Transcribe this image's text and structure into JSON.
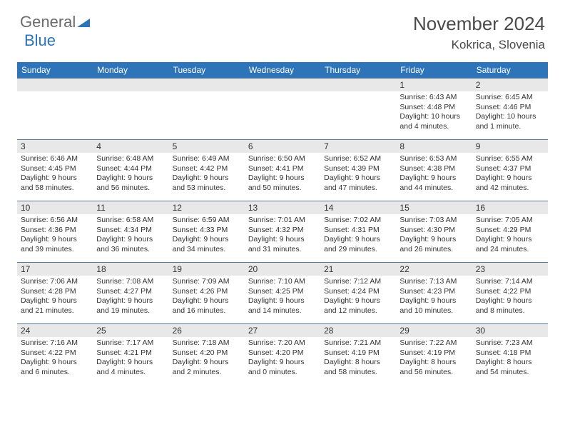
{
  "brand": {
    "part1": "General",
    "part2": "Blue"
  },
  "title": "November 2024",
  "location": "Kokrica, Slovenia",
  "colors": {
    "header_bg": "#2d74b8",
    "header_text": "#ffffff",
    "daynum_bg": "#e8e8e8",
    "row_border": "#5a7a9a",
    "body_text": "#333333",
    "logo_gray": "#6b6b6b",
    "logo_blue": "#2d74b8"
  },
  "day_labels": [
    "Sunday",
    "Monday",
    "Tuesday",
    "Wednesday",
    "Thursday",
    "Friday",
    "Saturday"
  ],
  "weeks": [
    [
      {
        "n": "",
        "lines": []
      },
      {
        "n": "",
        "lines": []
      },
      {
        "n": "",
        "lines": []
      },
      {
        "n": "",
        "lines": []
      },
      {
        "n": "",
        "lines": []
      },
      {
        "n": "1",
        "lines": [
          "Sunrise: 6:43 AM",
          "Sunset: 4:48 PM",
          "Daylight: 10 hours and 4 minutes."
        ]
      },
      {
        "n": "2",
        "lines": [
          "Sunrise: 6:45 AM",
          "Sunset: 4:46 PM",
          "Daylight: 10 hours and 1 minute."
        ]
      }
    ],
    [
      {
        "n": "3",
        "lines": [
          "Sunrise: 6:46 AM",
          "Sunset: 4:45 PM",
          "Daylight: 9 hours and 58 minutes."
        ]
      },
      {
        "n": "4",
        "lines": [
          "Sunrise: 6:48 AM",
          "Sunset: 4:44 PM",
          "Daylight: 9 hours and 56 minutes."
        ]
      },
      {
        "n": "5",
        "lines": [
          "Sunrise: 6:49 AM",
          "Sunset: 4:42 PM",
          "Daylight: 9 hours and 53 minutes."
        ]
      },
      {
        "n": "6",
        "lines": [
          "Sunrise: 6:50 AM",
          "Sunset: 4:41 PM",
          "Daylight: 9 hours and 50 minutes."
        ]
      },
      {
        "n": "7",
        "lines": [
          "Sunrise: 6:52 AM",
          "Sunset: 4:39 PM",
          "Daylight: 9 hours and 47 minutes."
        ]
      },
      {
        "n": "8",
        "lines": [
          "Sunrise: 6:53 AM",
          "Sunset: 4:38 PM",
          "Daylight: 9 hours and 44 minutes."
        ]
      },
      {
        "n": "9",
        "lines": [
          "Sunrise: 6:55 AM",
          "Sunset: 4:37 PM",
          "Daylight: 9 hours and 42 minutes."
        ]
      }
    ],
    [
      {
        "n": "10",
        "lines": [
          "Sunrise: 6:56 AM",
          "Sunset: 4:36 PM",
          "Daylight: 9 hours and 39 minutes."
        ]
      },
      {
        "n": "11",
        "lines": [
          "Sunrise: 6:58 AM",
          "Sunset: 4:34 PM",
          "Daylight: 9 hours and 36 minutes."
        ]
      },
      {
        "n": "12",
        "lines": [
          "Sunrise: 6:59 AM",
          "Sunset: 4:33 PM",
          "Daylight: 9 hours and 34 minutes."
        ]
      },
      {
        "n": "13",
        "lines": [
          "Sunrise: 7:01 AM",
          "Sunset: 4:32 PM",
          "Daylight: 9 hours and 31 minutes."
        ]
      },
      {
        "n": "14",
        "lines": [
          "Sunrise: 7:02 AM",
          "Sunset: 4:31 PM",
          "Daylight: 9 hours and 29 minutes."
        ]
      },
      {
        "n": "15",
        "lines": [
          "Sunrise: 7:03 AM",
          "Sunset: 4:30 PM",
          "Daylight: 9 hours and 26 minutes."
        ]
      },
      {
        "n": "16",
        "lines": [
          "Sunrise: 7:05 AM",
          "Sunset: 4:29 PM",
          "Daylight: 9 hours and 24 minutes."
        ]
      }
    ],
    [
      {
        "n": "17",
        "lines": [
          "Sunrise: 7:06 AM",
          "Sunset: 4:28 PM",
          "Daylight: 9 hours and 21 minutes."
        ]
      },
      {
        "n": "18",
        "lines": [
          "Sunrise: 7:08 AM",
          "Sunset: 4:27 PM",
          "Daylight: 9 hours and 19 minutes."
        ]
      },
      {
        "n": "19",
        "lines": [
          "Sunrise: 7:09 AM",
          "Sunset: 4:26 PM",
          "Daylight: 9 hours and 16 minutes."
        ]
      },
      {
        "n": "20",
        "lines": [
          "Sunrise: 7:10 AM",
          "Sunset: 4:25 PM",
          "Daylight: 9 hours and 14 minutes."
        ]
      },
      {
        "n": "21",
        "lines": [
          "Sunrise: 7:12 AM",
          "Sunset: 4:24 PM",
          "Daylight: 9 hours and 12 minutes."
        ]
      },
      {
        "n": "22",
        "lines": [
          "Sunrise: 7:13 AM",
          "Sunset: 4:23 PM",
          "Daylight: 9 hours and 10 minutes."
        ]
      },
      {
        "n": "23",
        "lines": [
          "Sunrise: 7:14 AM",
          "Sunset: 4:22 PM",
          "Daylight: 9 hours and 8 minutes."
        ]
      }
    ],
    [
      {
        "n": "24",
        "lines": [
          "Sunrise: 7:16 AM",
          "Sunset: 4:22 PM",
          "Daylight: 9 hours and 6 minutes."
        ]
      },
      {
        "n": "25",
        "lines": [
          "Sunrise: 7:17 AM",
          "Sunset: 4:21 PM",
          "Daylight: 9 hours and 4 minutes."
        ]
      },
      {
        "n": "26",
        "lines": [
          "Sunrise: 7:18 AM",
          "Sunset: 4:20 PM",
          "Daylight: 9 hours and 2 minutes."
        ]
      },
      {
        "n": "27",
        "lines": [
          "Sunrise: 7:20 AM",
          "Sunset: 4:20 PM",
          "Daylight: 9 hours and 0 minutes."
        ]
      },
      {
        "n": "28",
        "lines": [
          "Sunrise: 7:21 AM",
          "Sunset: 4:19 PM",
          "Daylight: 8 hours and 58 minutes."
        ]
      },
      {
        "n": "29",
        "lines": [
          "Sunrise: 7:22 AM",
          "Sunset: 4:19 PM",
          "Daylight: 8 hours and 56 minutes."
        ]
      },
      {
        "n": "30",
        "lines": [
          "Sunrise: 7:23 AM",
          "Sunset: 4:18 PM",
          "Daylight: 8 hours and 54 minutes."
        ]
      }
    ]
  ]
}
